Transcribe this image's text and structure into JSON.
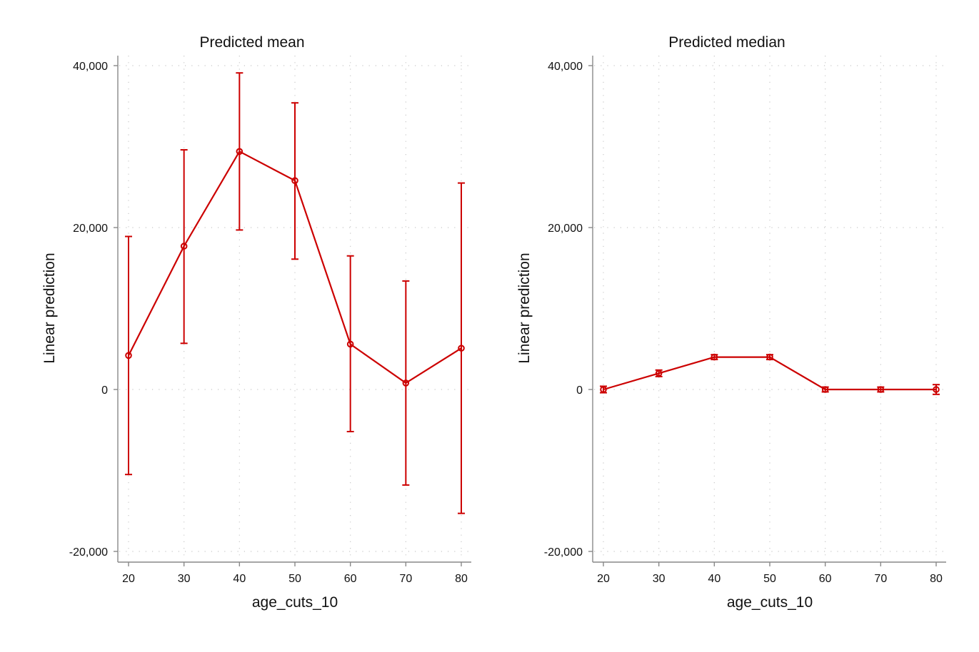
{
  "colors": {
    "series": "#cc0000",
    "axis": "#888888",
    "grid": "#c8c8c8"
  },
  "chart_data": [
    {
      "type": "line",
      "title": "Predicted mean",
      "xlabel": "age_cuts_10",
      "ylabel": "Linear prediction",
      "x": [
        20,
        30,
        40,
        50,
        60,
        70,
        80
      ],
      "x_tick_labels": [
        "20",
        "30",
        "40",
        "50",
        "60",
        "70",
        "80"
      ],
      "y_ticks": [
        -20000,
        0,
        20000,
        40000
      ],
      "y_tick_labels": [
        "-20,000",
        "0",
        "20,000",
        "40,000"
      ],
      "ylim": [
        -21300,
        41300
      ],
      "grid": true,
      "series": [
        {
          "y": [
            4200,
            17700,
            29400,
            25800,
            5600,
            800,
            5100
          ],
          "ci_low": [
            -10500,
            5700,
            19700,
            16100,
            -5200,
            -11800,
            -15300
          ],
          "ci_high": [
            18900,
            29600,
            39100,
            35400,
            16500,
            13400,
            25500
          ]
        }
      ]
    },
    {
      "type": "line",
      "title": "Predicted median",
      "xlabel": "age_cuts_10",
      "ylabel": "Linear prediction",
      "x": [
        20,
        30,
        40,
        50,
        60,
        70,
        80
      ],
      "x_tick_labels": [
        "20",
        "30",
        "40",
        "50",
        "60",
        "70",
        "80"
      ],
      "y_ticks": [
        -20000,
        0,
        20000,
        40000
      ],
      "y_tick_labels": [
        "-20,000",
        "0",
        "20,000",
        "40,000"
      ],
      "ylim": [
        -21300,
        41300
      ],
      "grid": true,
      "series": [
        {
          "y": [
            0,
            2000,
            4000,
            4000,
            0,
            0,
            0
          ],
          "ci_low": [
            -400,
            1600,
            3700,
            3700,
            -300,
            -300,
            -600
          ],
          "ci_high": [
            400,
            2400,
            4300,
            4300,
            300,
            300,
            600
          ]
        }
      ]
    }
  ]
}
